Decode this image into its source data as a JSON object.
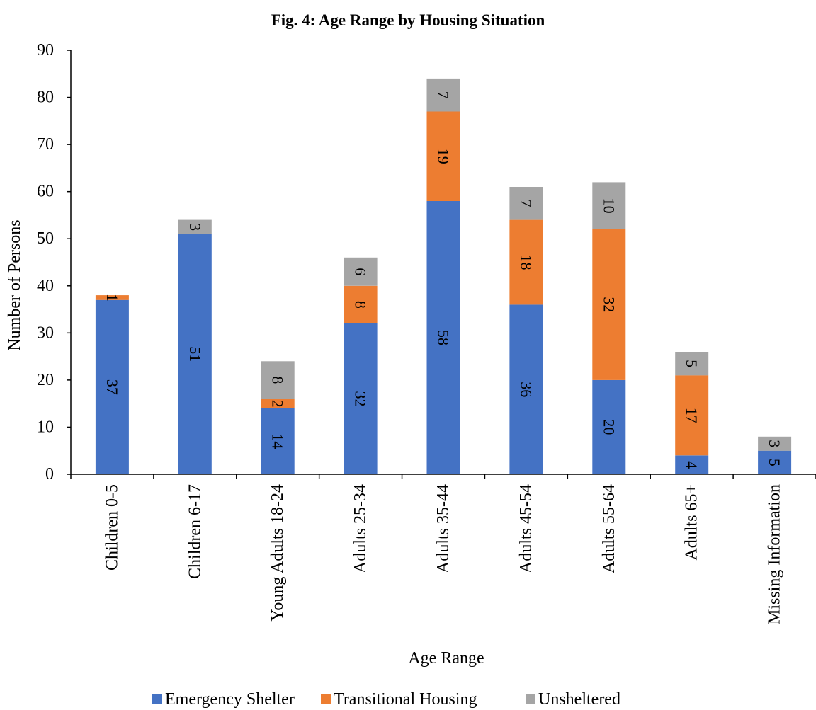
{
  "chart_data": {
    "type": "bar",
    "stacked": true,
    "title": "Fig. 4: Age Range by Housing Situation",
    "xlabel": "Age Range",
    "ylabel": "Number of Persons",
    "ylim": [
      0,
      90
    ],
    "yticks": [
      0,
      10,
      20,
      30,
      40,
      50,
      60,
      70,
      80,
      90
    ],
    "grid": false,
    "legend_position": "bottom",
    "categories": [
      "Children 0-5",
      "Children 6-17",
      "Young Adults 18-24",
      "Adults 25-34",
      "Adults 35-44",
      "Adults 45-54",
      "Adults 55-64",
      "Adults 65+",
      "Missing Information"
    ],
    "series": [
      {
        "name": "Emergency Shelter",
        "color": "#4472C4",
        "values": [
          37,
          51,
          14,
          32,
          58,
          36,
          20,
          4,
          5
        ]
      },
      {
        "name": "Transitional Housing",
        "color": "#ED7D31",
        "values": [
          1,
          0,
          2,
          8,
          19,
          18,
          32,
          17,
          0
        ]
      },
      {
        "name": "Unsheltered",
        "color": "#A5A5A5",
        "values": [
          0,
          3,
          8,
          6,
          7,
          7,
          10,
          5,
          3
        ]
      }
    ]
  }
}
